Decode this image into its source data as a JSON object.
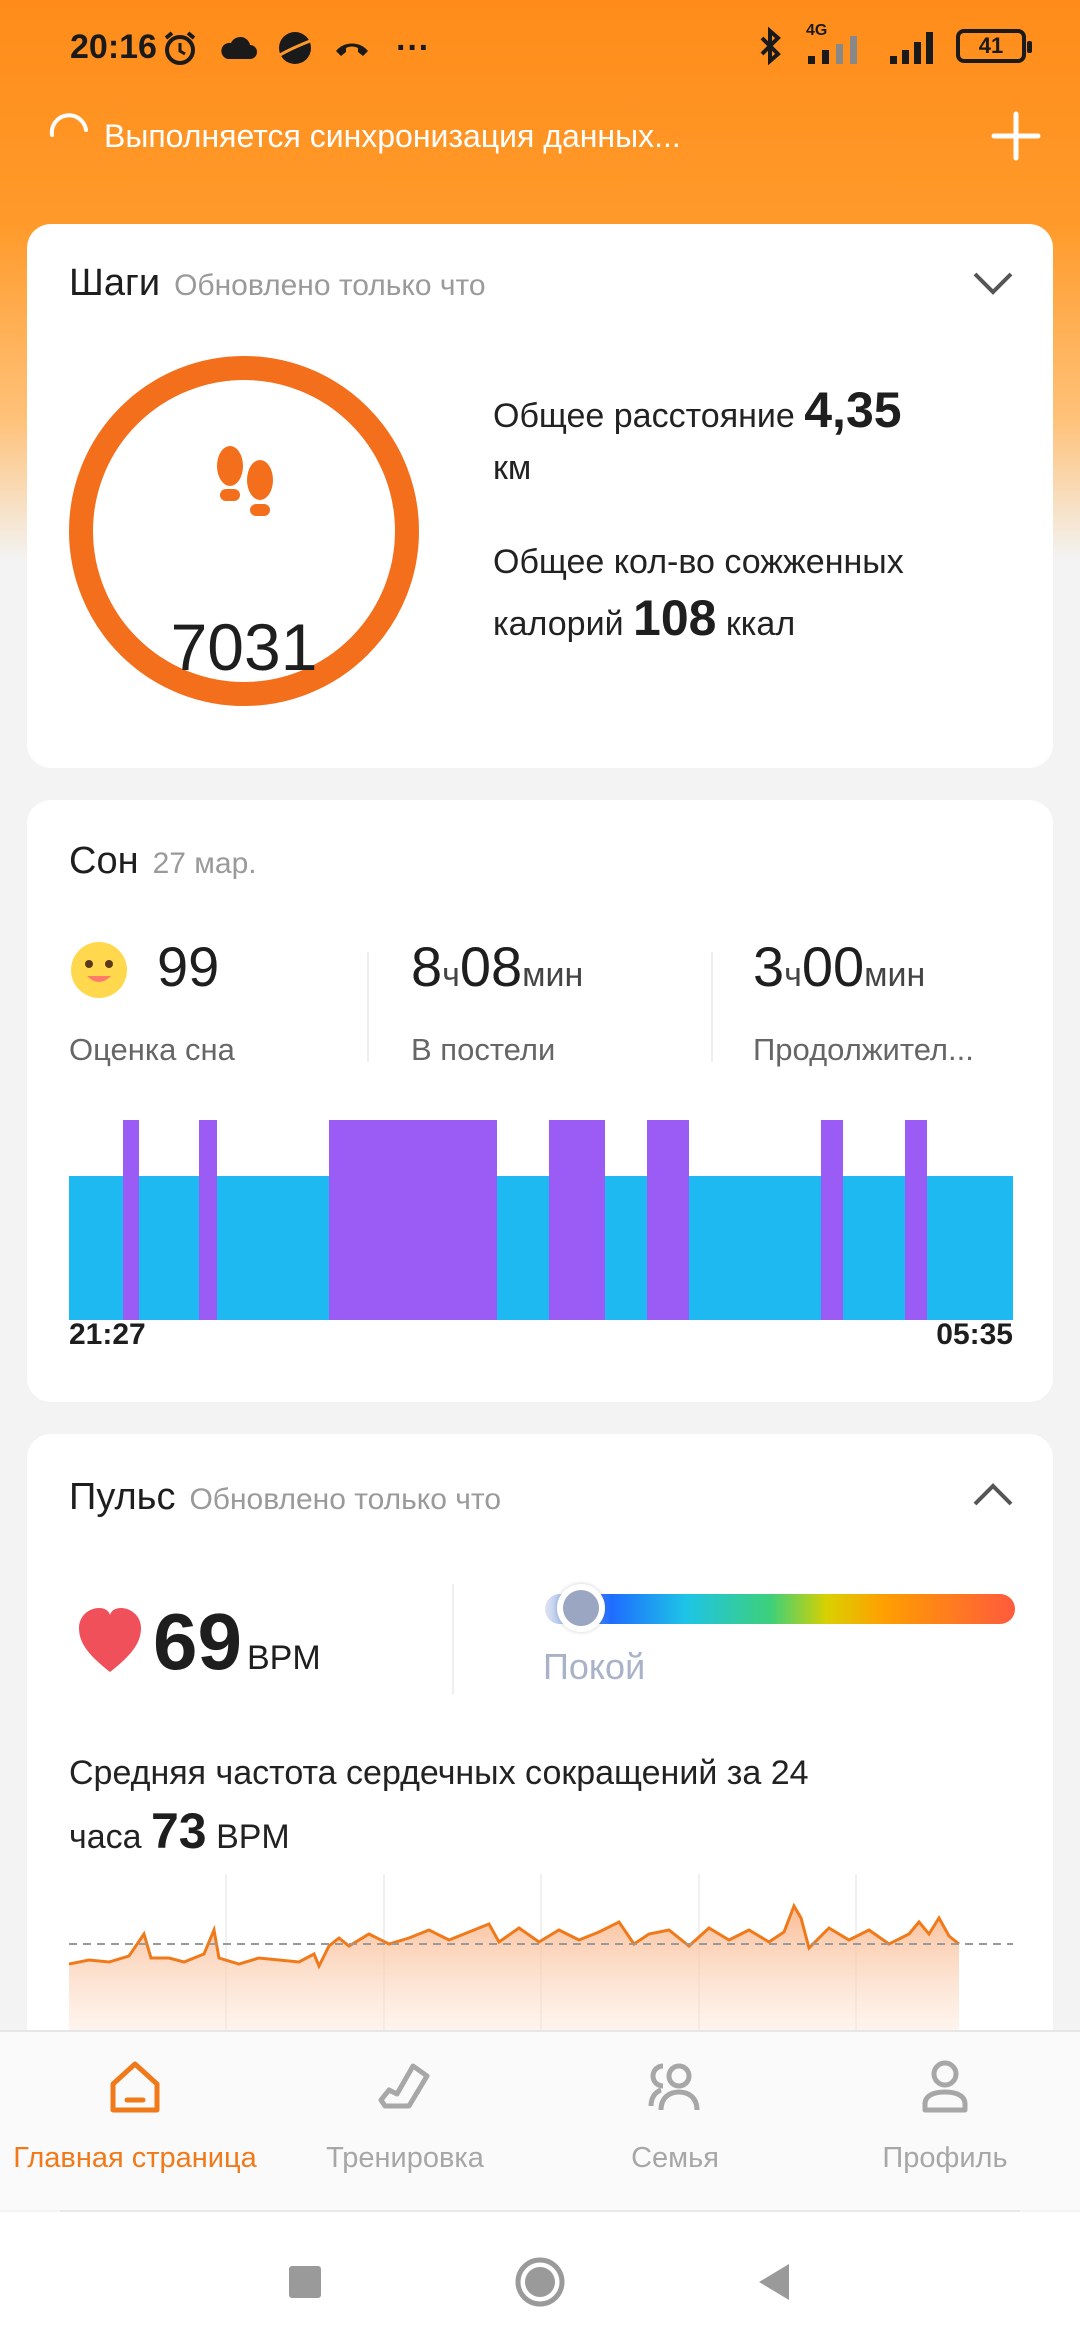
{
  "status_bar": {
    "time": "20:16",
    "battery": "41",
    "network": "4G",
    "more": "···"
  },
  "sync": {
    "text": "Выполняется синхронизация данных..."
  },
  "steps": {
    "title": "Шаги",
    "subtitle": "Обновлено только что",
    "value": "7031",
    "distance_label": "Общее расстояние",
    "distance_value": "4,35",
    "distance_unit": "км",
    "calories_label_1": "Общее кол-во сожженных",
    "calories_label_2": "калорий",
    "calories_value": "108",
    "calories_unit": "ккал",
    "progress": 1.0,
    "ring_color": "#f36f1c"
  },
  "sleep": {
    "title": "Сон",
    "date": "27 мар.",
    "score_value": "99",
    "score_label": "Оценка сна",
    "bed_hours": "8",
    "bed_h_unit": "ч",
    "bed_minutes": "08",
    "bed_m_unit": "мин",
    "bed_label": "В постели",
    "dur_hours": "3",
    "dur_h_unit": "ч",
    "dur_minutes": "00",
    "dur_m_unit": "мин",
    "dur_label": "Продолжител...",
    "start_time": "21:27",
    "end_time": "05:35",
    "colors": {
      "light": "#1fb9f2",
      "deep": "#9b5cf5"
    }
  },
  "pulse": {
    "title": "Пульс",
    "subtitle": "Обновлено только что",
    "value": "69",
    "unit": "BPM",
    "zone": "Покой",
    "avg_label_1": "Средняя частота сердечных сокращений за 24",
    "avg_label_2": "часа",
    "avg_value": "73",
    "avg_unit": "BPM",
    "line_color": "#f07a1a"
  },
  "nav": {
    "items": [
      {
        "label": "Главная страница",
        "icon": "home-icon",
        "active": true
      },
      {
        "label": "Тренировка",
        "icon": "shoe-icon",
        "active": false
      },
      {
        "label": "Семья",
        "icon": "family-icon",
        "active": false
      },
      {
        "label": "Профиль",
        "icon": "profile-icon",
        "active": false
      }
    ]
  }
}
